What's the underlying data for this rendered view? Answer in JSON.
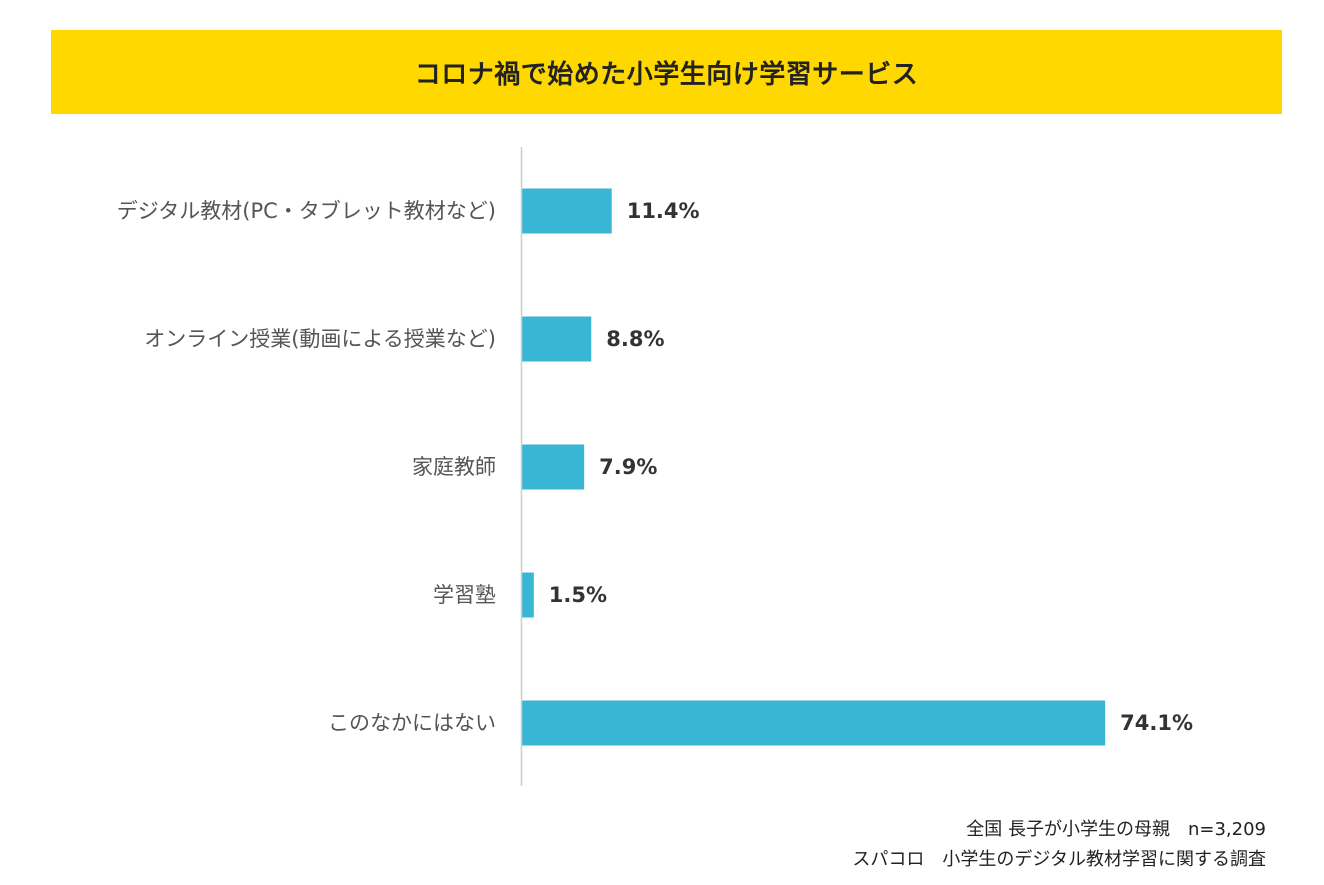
{
  "chart_data": {
    "type": "bar",
    "orientation": "horizontal",
    "title": "コロナ禍で始めた小学生向け学習サービス",
    "categories": [
      "デジタル教材(PC・タブレット教材など)",
      "オンライン授業(動画による授業など)",
      "家庭教師",
      "学習塾",
      "このなかにはない"
    ],
    "values": [
      11.4,
      8.8,
      7.9,
      1.5,
      74.1
    ],
    "value_labels": [
      "11.4%",
      "8.8%",
      "7.9%",
      "1.5%",
      "74.1%"
    ],
    "unit": "%",
    "xlim": [
      0,
      100
    ],
    "grid": false,
    "legend": "none",
    "colors": {
      "bar": "#38B6D4",
      "title_background": "#FFD800",
      "axis": "#CCCCCC"
    }
  },
  "footnotes": [
    "全国 長子が小学生の母親　n=3,209",
    "スパコロ　小学生のデジタル教材学習に関する調査"
  ]
}
